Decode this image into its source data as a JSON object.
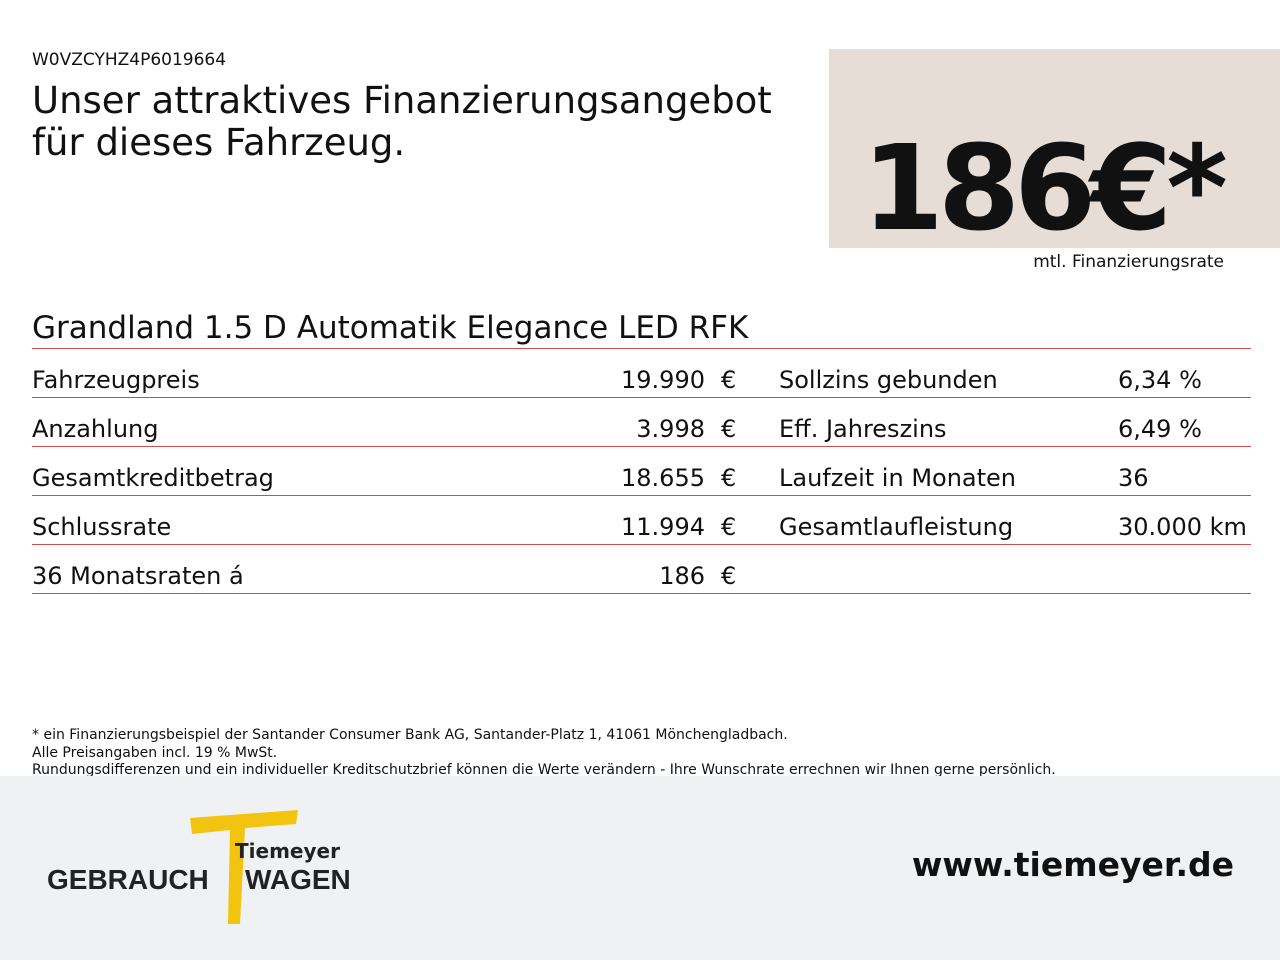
{
  "vin": "W0VZCYHZ4P6019664",
  "headline": [
    "Unser attraktives Finanzierungsangebot",
    "für dieses Fahrzeug."
  ],
  "price": {
    "amount": "186€*",
    "label": "mtl. Finanzierungsrate"
  },
  "model": "Grandland 1.5 D Automatik Elegance LED RFK",
  "left_rows": [
    [
      "Fahrzeugpreis",
      "19.990",
      "€"
    ],
    [
      "Anzahlung",
      "3.998",
      "€"
    ],
    [
      "Gesamtkreditbetrag",
      "18.655",
      "€"
    ],
    [
      "Schlussrate",
      "11.994",
      "€"
    ],
    [
      "36 Monatsraten á",
      "186",
      "€"
    ]
  ],
  "right_rows": [
    [
      "Sollzins gebunden",
      "6,34 %"
    ],
    [
      "Eff. Jahreszins",
      "6,49 %"
    ],
    [
      "Laufzeit in Monaten",
      "36"
    ],
    [
      "Gesamtlaufleistung",
      "30.000 km"
    ]
  ],
  "footnotes": [
    "* ein Finanzierungsbeispiel der Santander Consumer Bank AG, Santander-Platz 1, 41061 Mönchengladbach.",
    "Alle Preisangaben incl. 19 % MwSt.",
    "Rundungsdifferenzen und ein individueller Kreditschutzbrief können die Werte verändern - Ihre Wunschrate errechnen wir Ihnen gerne persönlich."
  ],
  "logo": {
    "brand": "Tiemeyer",
    "word1": "GEBRAUCH",
    "word2": "WAGEN"
  },
  "url": "www.tiemeyer.de"
}
